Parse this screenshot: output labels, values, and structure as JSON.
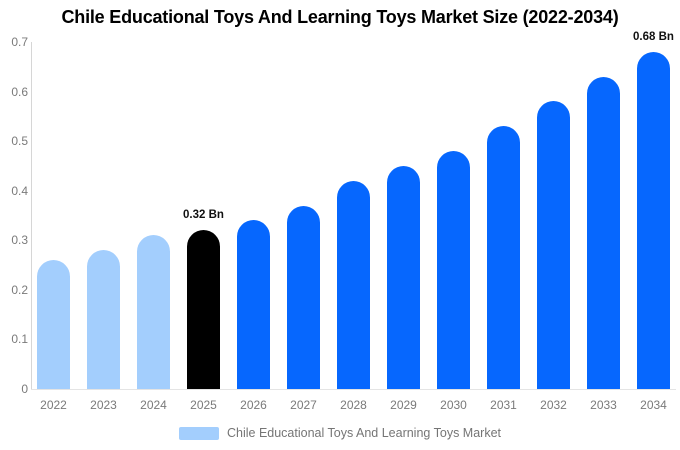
{
  "title": "Chile Educational Toys And Learning Toys Market Size (2022-2034)",
  "legend": {
    "label": "Chile Educational Toys And Learning Toys Market",
    "swatch_color": "#a3cefd"
  },
  "colors": {
    "historical_bar": "#a3cefd",
    "base_year_bar": "#000000",
    "forecast_bar": "#0667fe",
    "axis_line": "#d6d6d6",
    "tick_text": "#7a7a7a",
    "title_text": "#000000",
    "annotation_text": "#111111"
  },
  "chart_data": {
    "type": "bar",
    "title": "Chile Educational Toys And Learning Toys Market Size (2022-2034)",
    "unit": "Bn",
    "categories": [
      "2022",
      "2023",
      "2024",
      "2025",
      "2026",
      "2027",
      "2028",
      "2029",
      "2030",
      "2031",
      "2032",
      "2033",
      "2034"
    ],
    "values": [
      0.26,
      0.28,
      0.31,
      0.32,
      0.34,
      0.37,
      0.42,
      0.45,
      0.48,
      0.53,
      0.58,
      0.63,
      0.68
    ],
    "bar_colors": [
      "#a3cefd",
      "#a3cefd",
      "#a3cefd",
      "#000000",
      "#0667fe",
      "#0667fe",
      "#0667fe",
      "#0667fe",
      "#0667fe",
      "#0667fe",
      "#0667fe",
      "#0667fe",
      "#0667fe"
    ],
    "ylim": [
      0,
      0.7
    ],
    "yticks": [
      0,
      0.1,
      0.2,
      0.3,
      0.4,
      0.5,
      0.6,
      0.7
    ],
    "xlabel": "",
    "ylabel": "",
    "grid": false,
    "legend_position": "bottom",
    "annotations": [
      {
        "category": "2025",
        "text": "0.32 Bn"
      },
      {
        "category": "2034",
        "text": "0.68 Bn"
      }
    ]
  }
}
